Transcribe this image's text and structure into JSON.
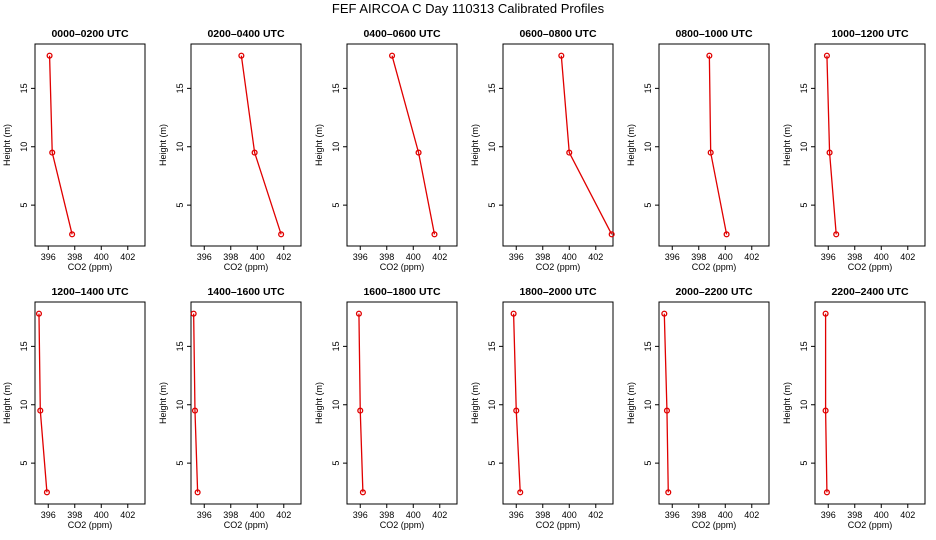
{
  "title": "FEF AIRCOA C  Day 110313  Calibrated Profiles",
  "colors": {
    "series": "#e00000",
    "frame": "#000000"
  },
  "chart_data": {
    "type": "line",
    "xlabel": "CO2 (ppm)",
    "ylabel": "Height (m)",
    "xlim": [
      395,
      403.3
    ],
    "ylim": [
      1.5,
      18.8
    ],
    "xticks": [
      396,
      398,
      400,
      402
    ],
    "yticks": [
      5,
      10,
      15
    ],
    "heights": [
      2.5,
      9.5,
      17.8
    ],
    "panels": [
      {
        "title": "0000–0200 UTC",
        "values": [
          397.8,
          396.3,
          396.1
        ]
      },
      {
        "title": "0200–0400 UTC",
        "values": [
          401.8,
          399.8,
          398.8
        ]
      },
      {
        "title": "0400–0600 UTC",
        "values": [
          401.6,
          400.4,
          398.4
        ]
      },
      {
        "title": "0600–0800 UTC",
        "values": [
          403.2,
          400.0,
          399.4
        ]
      },
      {
        "title": "0800–1000 UTC",
        "values": [
          400.1,
          398.9,
          398.8
        ]
      },
      {
        "title": "1000–1200 UTC",
        "values": [
          396.6,
          396.1,
          395.9
        ]
      },
      {
        "title": "1200–1400 UTC",
        "values": [
          395.9,
          395.4,
          395.3
        ]
      },
      {
        "title": "1400–1600 UTC",
        "values": [
          395.5,
          395.3,
          395.2
        ]
      },
      {
        "title": "1600–1800 UTC",
        "values": [
          396.2,
          396.0,
          395.9
        ]
      },
      {
        "title": "1800–2000 UTC",
        "values": [
          396.3,
          396.0,
          395.8
        ]
      },
      {
        "title": "2000–2200 UTC",
        "values": [
          395.7,
          395.6,
          395.4
        ]
      },
      {
        "title": "2200–2400 UTC",
        "values": [
          395.9,
          395.8,
          395.8
        ]
      }
    ]
  }
}
